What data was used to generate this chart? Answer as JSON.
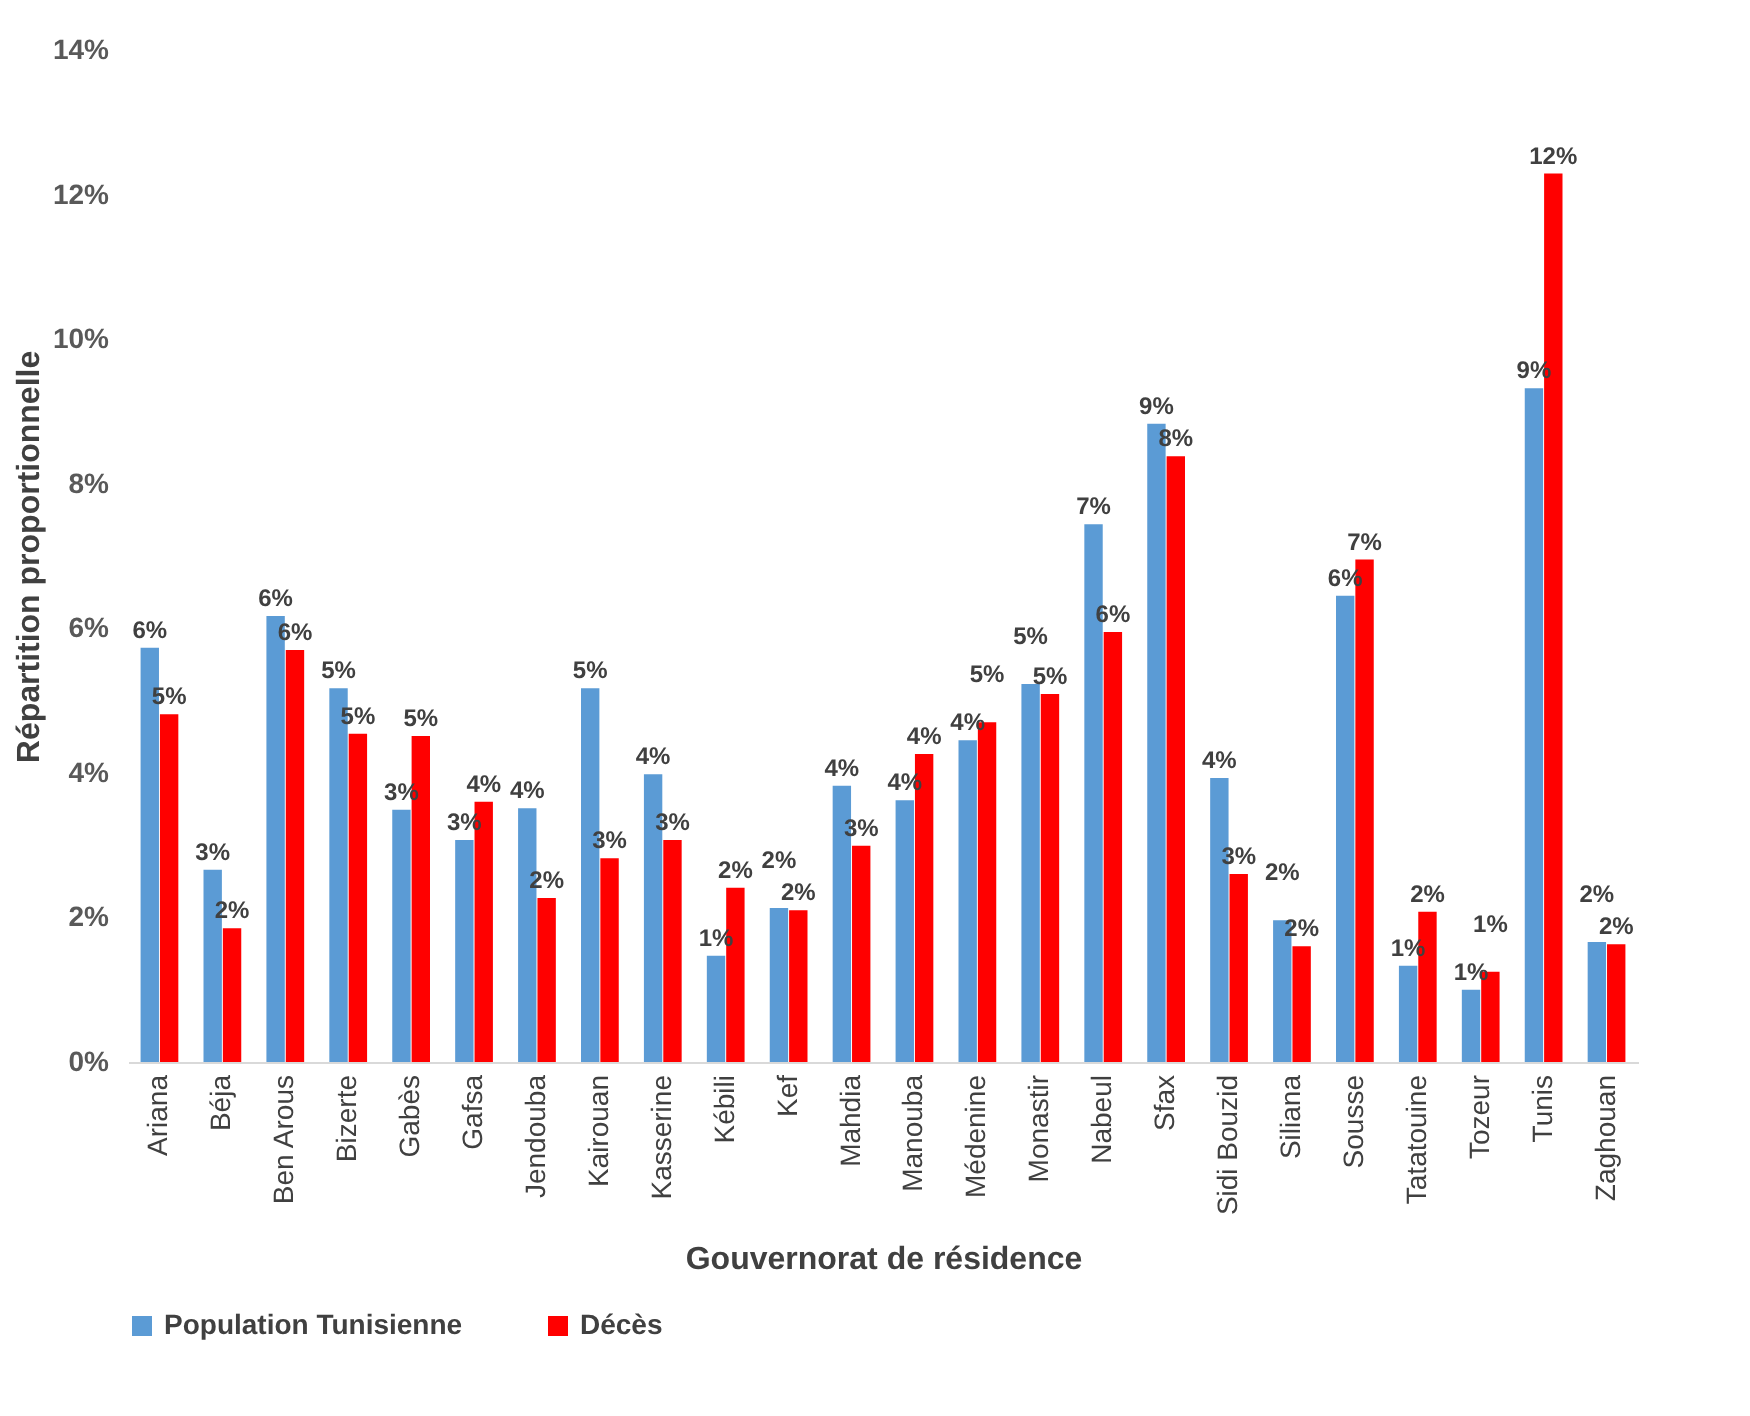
{
  "chart_data": {
    "type": "bar",
    "xlabel": "Gouvernorat de résidence",
    "ylabel": "Répartition proportionnelle",
    "categories": [
      "Ariana",
      "Béja",
      "Ben Arous",
      "Bizerte",
      "Gabès",
      "Gafsa",
      "Jendouba",
      "Kairouan",
      "Kasserine",
      "Kébili",
      "Kef",
      "Mahdia",
      "Manouba",
      "Médenine",
      "Monastir",
      "Nabeul",
      "Sfax",
      "Sidi Bouzid",
      "Siliana",
      "Sousse",
      "Tatatouine",
      "Tozeur",
      "Tunis",
      "Zaghouan"
    ],
    "series": [
      {
        "name": "Population Tunisienne",
        "color": "#5b9bd5",
        "values": [
          5.73,
          2.66,
          6.17,
          5.17,
          3.49,
          3.07,
          3.51,
          5.17,
          3.98,
          1.47,
          2.13,
          3.82,
          3.62,
          4.45,
          5.23,
          7.44,
          8.83,
          3.93,
          1.96,
          6.45,
          1.33,
          1.0,
          9.32,
          1.66
        ],
        "value_labels": [
          "6%",
          "3%",
          "6%",
          "5%",
          "3%",
          "3%",
          "4%",
          "5%",
          "4%",
          "1%",
          "2%",
          "4%",
          "4%",
          "4%",
          "5%",
          "7%",
          "9%",
          "4%",
          "2%",
          "6%",
          "1%",
          "1%",
          "9%",
          "2%"
        ]
      },
      {
        "name": "Décès",
        "color": "#ff0000",
        "values": [
          4.81,
          1.85,
          5.7,
          4.54,
          4.51,
          3.6,
          2.27,
          2.82,
          3.07,
          2.41,
          2.1,
          2.99,
          4.26,
          4.7,
          5.09,
          5.95,
          8.38,
          2.6,
          1.6,
          6.95,
          2.08,
          1.25,
          12.29,
          1.63
        ],
        "value_labels": [
          "5%",
          "2%",
          "6%",
          "5%",
          "5%",
          "4%",
          "2%",
          "3%",
          "3%",
          "2%",
          "2%",
          "3%",
          "4%",
          "5%",
          "5%",
          "6%",
          "8%",
          "3%",
          "2%",
          "7%",
          "2%",
          "1%",
          "12%",
          "2%"
        ]
      }
    ],
    "ylim": [
      0,
      14
    ],
    "yticks": [
      {
        "value": 0,
        "label": "0%"
      },
      {
        "value": 2,
        "label": "2%"
      },
      {
        "value": 4,
        "label": "4%"
      },
      {
        "value": 6,
        "label": "6%"
      },
      {
        "value": 8,
        "label": "8%"
      },
      {
        "value": 10,
        "label": "10%"
      },
      {
        "value": 12,
        "label": "12%"
      },
      {
        "value": 14,
        "label": "14%"
      }
    ],
    "legend": "bottom"
  }
}
